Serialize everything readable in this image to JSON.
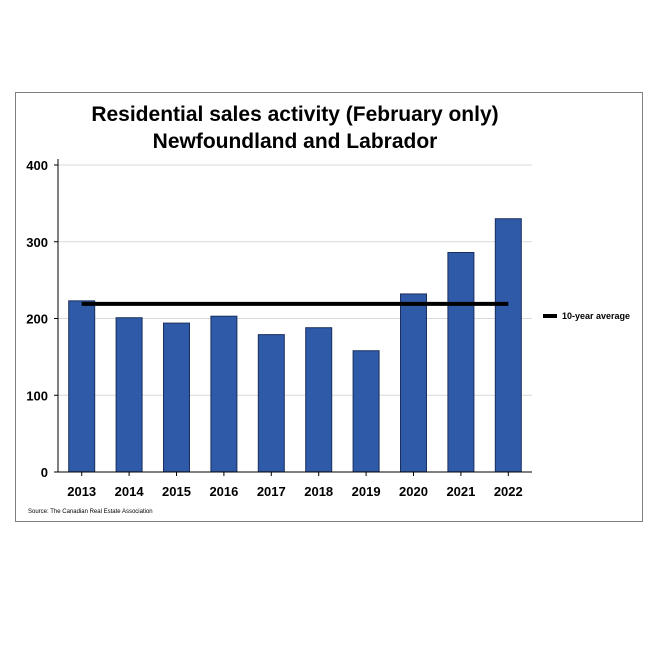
{
  "chart_data": {
    "type": "bar",
    "title": [
      "Residential sales activity (February only)",
      "Newfoundland and Labrador"
    ],
    "categories": [
      "2013",
      "2014",
      "2015",
      "2016",
      "2017",
      "2018",
      "2019",
      "2020",
      "2021",
      "2022"
    ],
    "values": [
      223,
      201,
      194,
      203,
      179,
      188,
      158,
      232,
      286,
      330
    ],
    "ylim": [
      0,
      400
    ],
    "yticks": [
      0,
      100,
      200,
      300,
      400
    ],
    "grid": true,
    "bar_color": "#2e5aa8",
    "reference_line": {
      "name": "10-year average",
      "value": 219,
      "color": "#000000"
    },
    "legend": {
      "placement": "right",
      "label": "10-year average"
    },
    "source": "Source: The Canadian Real Estate Association"
  }
}
